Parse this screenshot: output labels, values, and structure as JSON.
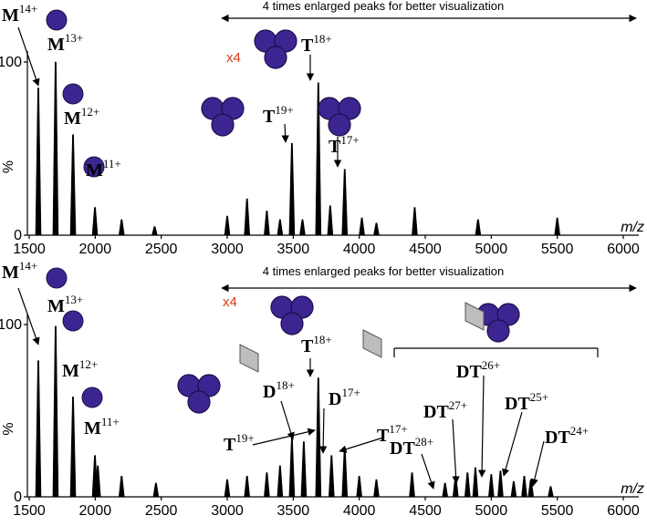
{
  "chart_data": [
    {
      "type": "spectrum",
      "x_label": "m/z",
      "y_label": "%",
      "xlim": [
        1500,
        6000
      ],
      "ylim": [
        0,
        100
      ],
      "xticks": [
        1500,
        2000,
        2500,
        3000,
        3500,
        4000,
        4500,
        5000,
        5500,
        6000
      ],
      "yticks": [
        0,
        100
      ],
      "color": "#000000",
      "x": [
        1569,
        1700,
        1832,
        1998,
        2200,
        2450,
        3000,
        3150,
        3300,
        3400,
        3490,
        3570,
        3690,
        3780,
        3890,
        4020,
        4130,
        4420,
        4900,
        5500
      ],
      "values": [
        85,
        100,
        58,
        16,
        9,
        5,
        11,
        21,
        14,
        9,
        53,
        9,
        88,
        17,
        38,
        10,
        7,
        16,
        9,
        10
      ],
      "annotations": [
        {
          "text": "4 times enlarged peaks for better visualization"
        },
        {
          "text": "x4"
        },
        {
          "text": "M",
          "sup": "14+"
        },
        {
          "text": "M",
          "sup": "13+"
        },
        {
          "text": "M",
          "sup": "12+"
        },
        {
          "text": "M",
          "sup": "11+"
        },
        {
          "text": "T",
          "sup": "18+"
        },
        {
          "text": "T",
          "sup": "19+"
        },
        {
          "text": "T",
          "sup": "17+"
        }
      ]
    },
    {
      "type": "spectrum",
      "x_label": "m/z",
      "y_label": "%",
      "xlim": [
        1500,
        6000
      ],
      "ylim": [
        0,
        100
      ],
      "xticks": [
        1500,
        2000,
        2500,
        3000,
        3500,
        4000,
        4500,
        5000,
        5500,
        6000
      ],
      "yticks": [
        0,
        100
      ],
      "color": "#000000",
      "x": [
        1569,
        1700,
        1832,
        1998,
        2020,
        2200,
        2460,
        3000,
        3150,
        3300,
        3400,
        3490,
        3580,
        3690,
        3790,
        3890,
        4000,
        4130,
        4400,
        4650,
        4730,
        4820,
        4880,
        5000,
        5070,
        5170,
        5250,
        5300,
        5450
      ],
      "values": [
        79,
        99,
        58,
        24,
        18,
        12,
        8,
        10,
        12,
        14,
        18,
        34,
        32,
        69,
        24,
        29,
        12,
        10,
        14,
        8,
        12,
        14,
        17,
        13,
        15,
        9,
        12,
        10,
        6
      ],
      "annotations": [
        {
          "text": "4 times enlarged peaks for better visualization"
        },
        {
          "text": "x4"
        },
        {
          "text": "M",
          "sup": "14+"
        },
        {
          "text": "M",
          "sup": "13+"
        },
        {
          "text": "M",
          "sup": "12+"
        },
        {
          "text": "M",
          "sup": "11+"
        },
        {
          "text": "T",
          "sup": "18+"
        },
        {
          "text": "D",
          "sup": "18+"
        },
        {
          "text": "D",
          "sup": "17+"
        },
        {
          "text": "T",
          "sup": "19+"
        },
        {
          "text": "T",
          "sup": "17+"
        },
        {
          "text": "DT",
          "sup": "28+"
        },
        {
          "text": "DT",
          "sup": "27+"
        },
        {
          "text": "DT",
          "sup": "26+"
        },
        {
          "text": "DT",
          "sup": "25+"
        },
        {
          "text": "DT",
          "sup": "24+"
        }
      ]
    }
  ]
}
